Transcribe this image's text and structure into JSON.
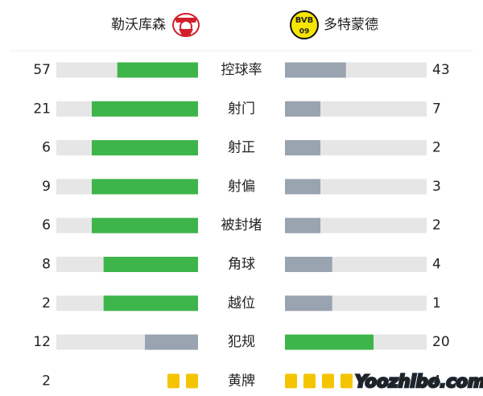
{
  "header": {
    "home": "勒沃库森",
    "away": "多特蒙德"
  },
  "stats": [
    {
      "label": "控球率",
      "home": 57,
      "away": 43,
      "marks": "bar"
    },
    {
      "label": "射门",
      "home": 21,
      "away": 7,
      "marks": "bar"
    },
    {
      "label": "射正",
      "home": 6,
      "away": 2,
      "marks": "bar"
    },
    {
      "label": "射偏",
      "home": 9,
      "away": 3,
      "marks": "bar"
    },
    {
      "label": "被封堵",
      "home": 6,
      "away": 2,
      "marks": "bar"
    },
    {
      "label": "角球",
      "home": 8,
      "away": 4,
      "marks": "bar"
    },
    {
      "label": "越位",
      "home": 2,
      "away": 1,
      "marks": "bar"
    },
    {
      "label": "犯规",
      "home": 12,
      "away": 20,
      "marks": "bar"
    },
    {
      "label": "黄牌",
      "home": 2,
      "away": 4,
      "marks": "cards"
    }
  ],
  "colors": {
    "more": "#3db54a",
    "less": "#9aa3b0",
    "track": "#e6e6e6",
    "card": "#f5c400"
  },
  "watermark": "Yoozhibo.com"
}
